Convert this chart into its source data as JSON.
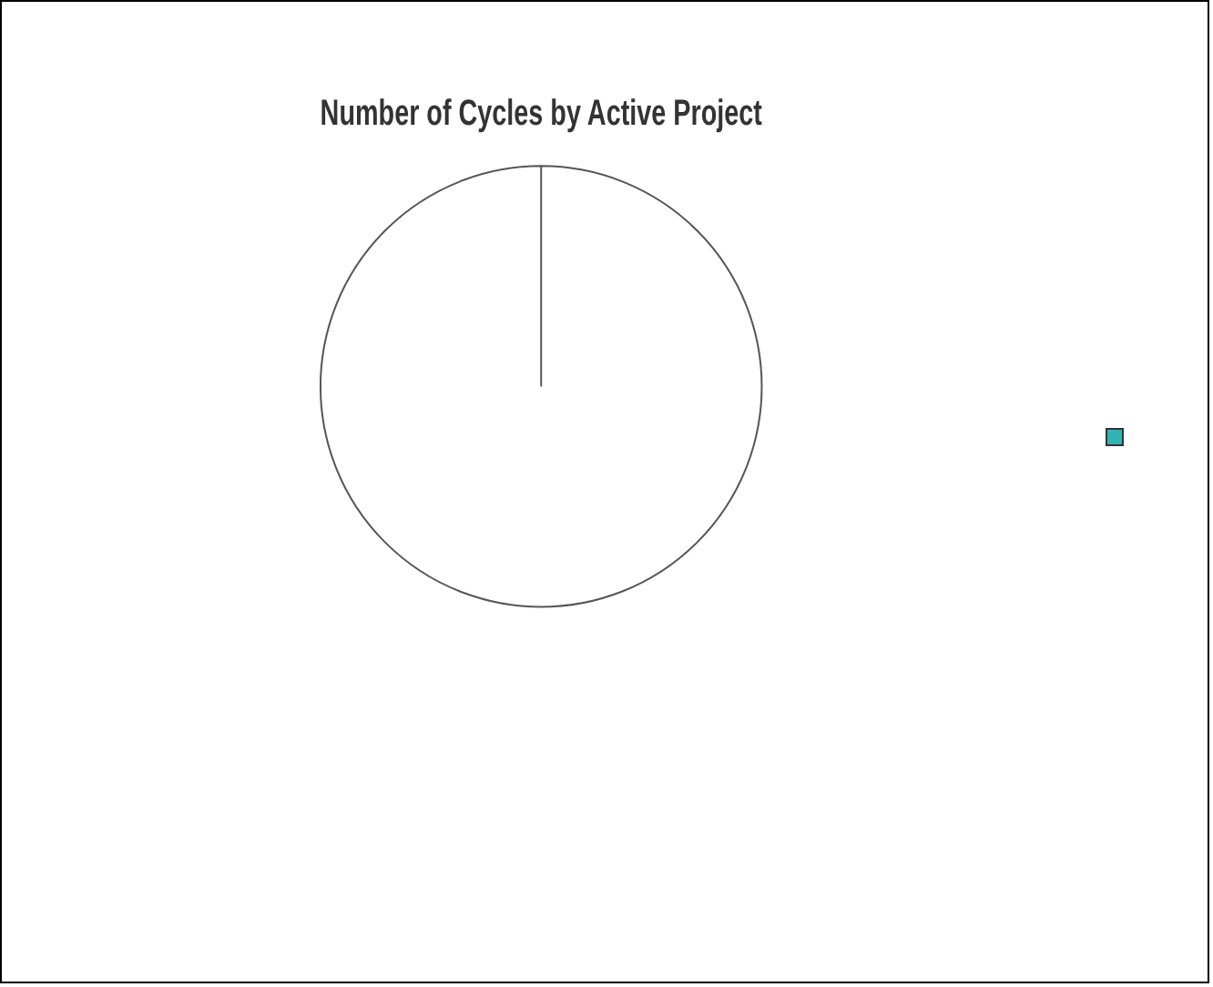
{
  "chart_data": {
    "type": "pie",
    "title": "Number of Cycles by Active Project",
    "categories": [
      null
    ],
    "values": [
      100
    ],
    "colors": [
      "#ffffff"
    ]
  }
}
